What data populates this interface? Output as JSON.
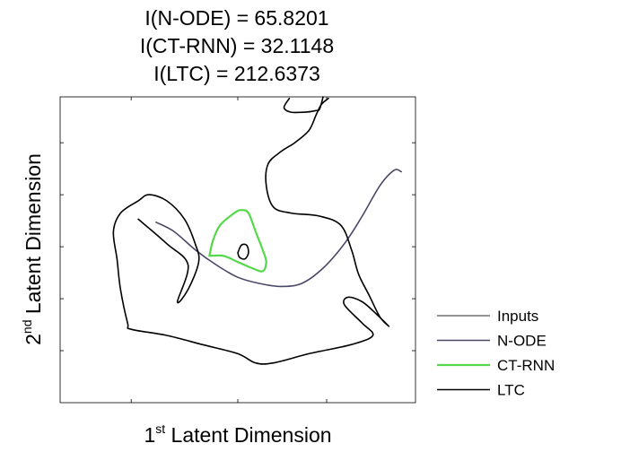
{
  "chart_data": {
    "type": "line",
    "title_lines": [
      "I(N-ODE) = 65.8201",
      "I(CT-RNN) = 32.1148",
      "I(LTC) = 212.6373"
    ],
    "xlabel": {
      "sup": "st",
      "pre": "1",
      "post": " Latent Dimension"
    },
    "ylabel": {
      "sup": "nd",
      "pre": "2",
      "post": " Latent Dimension"
    },
    "xlim": [
      0,
      10
    ],
    "ylim": [
      0,
      10
    ],
    "grid": false,
    "legend_position": "outside-right",
    "series": [
      {
        "name": "Inputs",
        "color": "#6e6e6e",
        "points": []
      },
      {
        "name": "N-ODE",
        "color": "#4a4868",
        "points": [
          [
            2.7,
            5.9
          ],
          [
            3.2,
            5.6
          ],
          [
            3.8,
            5.0
          ],
          [
            4.4,
            4.5
          ],
          [
            5.0,
            4.1
          ],
          [
            5.6,
            3.9
          ],
          [
            6.2,
            3.8
          ],
          [
            6.8,
            3.9
          ],
          [
            7.4,
            4.4
          ],
          [
            8.0,
            5.2
          ],
          [
            8.5,
            6.1
          ],
          [
            9.0,
            7.1
          ],
          [
            9.4,
            7.6
          ],
          [
            9.6,
            7.55
          ]
        ]
      },
      {
        "name": "CT-RNN",
        "color": "#55d84a",
        "points": [
          [
            4.2,
            4.8
          ],
          [
            4.3,
            5.3
          ],
          [
            4.5,
            5.8
          ],
          [
            4.9,
            6.2
          ],
          [
            5.1,
            6.3
          ],
          [
            5.3,
            6.2
          ],
          [
            5.5,
            5.6
          ],
          [
            5.7,
            5.0
          ],
          [
            5.8,
            4.6
          ],
          [
            5.7,
            4.3
          ],
          [
            5.4,
            4.4
          ],
          [
            5.0,
            4.6
          ],
          [
            4.6,
            4.8
          ],
          [
            4.2,
            4.8
          ]
        ]
      },
      {
        "name": "LTC",
        "color": "#000000",
        "points": [
          [
            7.55,
            9.95
          ],
          [
            7.35,
            9.75
          ],
          [
            7.2,
            9.4
          ],
          [
            7.0,
            8.9
          ],
          [
            6.6,
            8.5
          ],
          [
            6.2,
            8.2
          ],
          [
            5.85,
            7.8
          ],
          [
            5.8,
            7.1
          ],
          [
            6.0,
            6.4
          ],
          [
            6.5,
            6.2
          ],
          [
            7.3,
            6.1
          ],
          [
            7.9,
            5.8
          ],
          [
            8.2,
            5.0
          ],
          [
            8.4,
            4.2
          ],
          [
            8.7,
            3.5
          ],
          [
            9.0,
            2.8
          ],
          [
            9.25,
            2.5
          ],
          [
            8.9,
            2.9
          ],
          [
            8.5,
            3.3
          ],
          [
            8.1,
            3.45
          ],
          [
            8.0,
            3.2
          ],
          [
            8.5,
            2.6
          ],
          [
            8.8,
            2.2
          ],
          [
            8.2,
            1.9
          ],
          [
            7.0,
            1.6
          ],
          [
            6.0,
            1.3
          ],
          [
            5.5,
            1.3
          ],
          [
            5.0,
            1.6
          ],
          [
            4.0,
            1.9
          ],
          [
            3.0,
            2.2
          ],
          [
            2.0,
            2.4
          ],
          [
            1.9,
            2.6
          ],
          [
            1.7,
            3.7
          ],
          [
            1.6,
            4.7
          ],
          [
            1.5,
            5.6
          ],
          [
            1.7,
            6.2
          ],
          [
            2.2,
            6.6
          ],
          [
            2.5,
            6.8
          ],
          [
            3.0,
            6.6
          ],
          [
            3.5,
            6.0
          ],
          [
            3.8,
            5.2
          ],
          [
            3.9,
            4.6
          ],
          [
            3.6,
            3.7
          ],
          [
            3.3,
            3.3
          ],
          [
            3.6,
            4.5
          ],
          [
            3.0,
            5.2
          ],
          [
            2.2,
            6.0
          ]
        ]
      },
      {
        "name": "",
        "color": "#000000",
        "points": [
          [
            5.0,
            4.9
          ],
          [
            5.1,
            5.15
          ],
          [
            5.25,
            5.15
          ],
          [
            5.3,
            4.9
          ],
          [
            5.2,
            4.7
          ],
          [
            5.05,
            4.75
          ],
          [
            5.0,
            4.9
          ]
        ]
      },
      {
        "name": "",
        "color": "#000000",
        "points": [
          [
            6.45,
            9.95
          ],
          [
            6.3,
            9.65
          ],
          [
            6.5,
            9.5
          ],
          [
            6.9,
            9.5
          ],
          [
            7.2,
            9.55
          ],
          [
            7.3,
            9.6
          ],
          [
            7.4,
            10.0
          ]
        ]
      }
    ]
  }
}
